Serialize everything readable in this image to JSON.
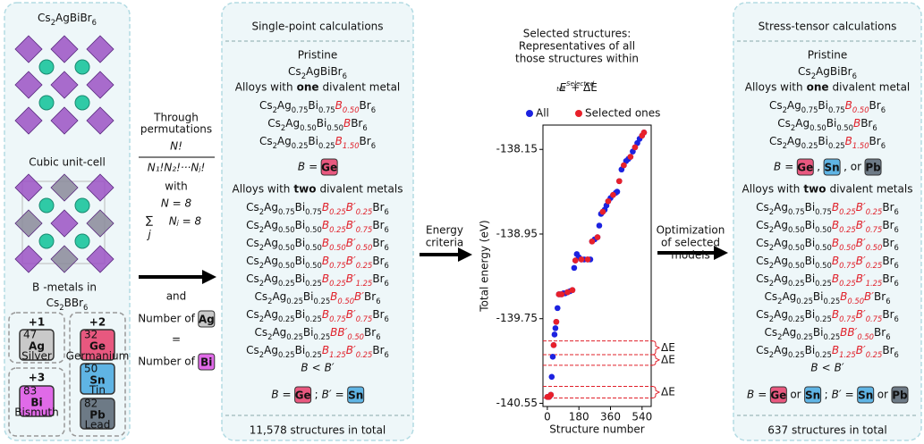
{
  "panel_left": {
    "title": "Cs2AgBiBr6",
    "caption": "Cubic unit-cell",
    "b_metals": {
      "b": "B",
      "rest": "-metals in",
      "formula": "Cs2BBr6"
    },
    "groups": [
      {
        "charge": "+1",
        "elements": [
          {
            "symbol": "Ag",
            "number": 47,
            "name": "Silver",
            "color": "#c9c9c9"
          }
        ]
      },
      {
        "charge": "+2",
        "elements": [
          {
            "symbol": "Ge",
            "number": 32,
            "name": "Germanium",
            "color": "#e8587f"
          },
          {
            "symbol": "Sn",
            "number": 50,
            "name": "Tin",
            "color": "#5fb4e4"
          },
          {
            "symbol": "Pb",
            "number": 82,
            "name": "Lead",
            "color": "#6d7a86"
          }
        ]
      },
      {
        "charge": "+3",
        "elements": [
          {
            "symbol": "Bi",
            "number": 83,
            "name": "Bismuth",
            "color": "#e06ae8"
          }
        ]
      }
    ]
  },
  "permutations": {
    "lines": [
      "Through",
      "permutations"
    ],
    "numerator": "N!",
    "denominator": "N₁!N₂!···Nⱼ!",
    "with": "with",
    "n_eq": "N = 8",
    "sum": "∑",
    "sum_index": "j",
    "sum_expr": "Nⱼ = 8",
    "and": "and",
    "count_a": [
      "Number of",
      {
        "tile": "Ag"
      }
    ],
    "equals": "=",
    "count_b": [
      "Number of",
      {
        "tile": "Bi"
      }
    ]
  },
  "energy_arrow": {
    "lines": [
      "Energy",
      "criteria"
    ]
  },
  "single_point": {
    "header": "Single-point calculations",
    "pristine": "Pristine",
    "pristine_formula": "Cs2AgBiBr6",
    "one_heading": {
      "pre": "Alloys with",
      "em": "one",
      "post": "divalent metal"
    },
    "one_formulas": [
      "Cs2Ag0.75Bi0.75B0.50Br6",
      "Cs2Ag0.50Bi0.50BBr6",
      "Cs2Ag0.25Bi0.25B1.50Br6"
    ],
    "one_rule": [
      "B",
      "=",
      {
        "tile": "Ge"
      }
    ],
    "two_heading": {
      "pre": "Alloys with",
      "em": "two",
      "post": "divalent metals"
    },
    "two_formulas": [
      "Cs2Ag0.75Bi0.75B0.25B′0.25Br6",
      "Cs2Ag0.50Bi0.50B0.25B′0.75Br6",
      "Cs2Ag0.50Bi0.50B0.50B′0.50Br6",
      "Cs2Ag0.50Bi0.50B0.75B′0.25Br6",
      "Cs2Ag0.25Bi0.25B0.25B′1.25Br6",
      "Cs2Ag0.25Bi0.25B0.50B′Br6",
      "Cs2Ag0.25Bi0.25B0.75B′0.75Br6",
      "Cs2Ag0.25Bi0.25BB′0.50Br6",
      "Cs2Ag0.25Bi0.25B1.25B′0.25Br6"
    ],
    "two_order": [
      "B",
      "<",
      "B′"
    ],
    "two_rule": [
      "B",
      "=",
      {
        "tile": "Ge"
      },
      ";",
      "B′",
      "=",
      {
        "tile": "Sn"
      }
    ],
    "footer": "11,578 structures in total"
  },
  "plot": {
    "type": "scatter",
    "title_lines": [
      "Selected structures:",
      "Representatives of all",
      "those structures within"
    ],
    "expression": {
      "base": "E",
      "sub": "tot",
      "sup": "Selected",
      "rest": "+ ΔE"
    },
    "x_label": "Structure number",
    "y_label": "Total energy (eV)",
    "xlim": [
      -25,
      592
    ],
    "ylim": [
      -140.58,
      -137.92
    ],
    "xticks": [
      0,
      180,
      360,
      540
    ],
    "yticks": [
      -138.15,
      -138.95,
      -139.75,
      -140.55
    ],
    "series": [
      {
        "name": "All",
        "color": "#1c22e0",
        "x": [
          0,
          5,
          10,
          15,
          20,
          25,
          31,
          36,
          41,
          46,
          51,
          58,
          66,
          74,
          82,
          92,
          102,
          115,
          130,
          143,
          153,
          160,
          168,
          180,
          194,
          210,
          230,
          245,
          255,
          270,
          286,
          296,
          306,
          316,
          327,
          337,
          347,
          360,
          375,
          390,
          398,
          410,
          423,
          436,
          449,
          462,
          474,
          487,
          500,
          513,
          526,
          540,
          551
        ],
        "values": [
          -140.49,
          -140.49,
          -140.49,
          -140.48,
          -140.47,
          -140.3,
          -140.11,
          -140.0,
          -139.9,
          -139.84,
          -139.78,
          -139.65,
          -139.52,
          -139.52,
          -139.52,
          -139.51,
          -139.51,
          -139.5,
          -139.49,
          -139.48,
          -139.27,
          -139.2,
          -139.14,
          -139.17,
          -139.19,
          -139.19,
          -139.19,
          -139.19,
          -139.02,
          -139.0,
          -138.98,
          -138.87,
          -138.76,
          -138.74,
          -138.72,
          -138.68,
          -138.64,
          -138.61,
          -138.58,
          -138.56,
          -138.55,
          -138.45,
          -138.34,
          -138.3,
          -138.26,
          -138.24,
          -138.22,
          -138.17,
          -138.13,
          -138.09,
          -138.05,
          -138.02,
          -137.99
        ]
      },
      {
        "name": "Selected ones",
        "color": "#e8202a",
        "x": [
          0,
          10,
          20,
          36,
          51,
          66,
          82,
          115,
          143,
          160,
          194,
          230,
          255,
          286,
          316,
          347,
          375,
          410,
          436,
          474,
          500,
          540,
          551
        ],
        "values": [
          -140.49,
          -140.49,
          -140.47,
          -140.0,
          -139.78,
          -139.52,
          -139.52,
          -139.5,
          -139.48,
          -139.2,
          -139.19,
          -139.19,
          -139.02,
          -138.98,
          -138.74,
          -138.64,
          -138.58,
          -138.45,
          -138.3,
          -138.22,
          -138.13,
          -138.02,
          -137.99
        ]
      }
    ],
    "delta_e": {
      "label": "ΔE",
      "ranges": [
        [
          -139.96,
          -140.09
        ],
        [
          -140.09,
          -140.19
        ],
        [
          -140.39,
          -140.5
        ]
      ]
    }
  },
  "optimization_arrow": {
    "lines": [
      "Optimization",
      "of selected",
      "models"
    ]
  },
  "stress_tensor": {
    "header": "Stress-tensor calculations",
    "pristine": "Pristine",
    "pristine_formula": "Cs2AgBiBr6",
    "one_heading": {
      "pre": "Alloys with",
      "em": "one",
      "post": "divalent metal"
    },
    "one_formulas": [
      "Cs2Ag0.75Bi0.75B0.50Br6",
      "Cs2Ag0.50Bi0.50BBr6",
      "Cs2Ag0.25Bi0.25B1.50Br6"
    ],
    "one_rule": [
      "B",
      "=",
      {
        "tile": "Ge"
      },
      ",",
      {
        "tile": "Sn"
      },
      ", or",
      {
        "tile": "Pb"
      }
    ],
    "two_heading": {
      "pre": "Alloys with",
      "em": "two",
      "post": "divalent metals"
    },
    "two_formulas": [
      "Cs2Ag0.75Bi0.75B0.25B′0.25Br6",
      "Cs2Ag0.50Bi0.50B0.25B′0.75Br6",
      "Cs2Ag0.50Bi0.50B0.50B′0.50Br6",
      "Cs2Ag0.50Bi0.50B0.75B′0.25Br6",
      "Cs2Ag0.25Bi0.25B0.25B′1.25Br6",
      "Cs2Ag0.25Bi0.25B0.50B′Br6",
      "Cs2Ag0.25Bi0.25B0.75B′0.75Br6",
      "Cs2Ag0.25Bi0.25BB′0.50Br6",
      "Cs2Ag0.25Bi0.25B1.25B′0.25Br6"
    ],
    "two_order": [
      "B",
      "<",
      "B′"
    ],
    "two_rule": [
      "B",
      "=",
      {
        "tile": "Ge"
      },
      "or",
      {
        "tile": "Sn"
      },
      ";",
      "B′",
      "=",
      {
        "tile": "Sn"
      },
      "or",
      {
        "tile": "Pb"
      }
    ],
    "footer": "637 structures in total"
  }
}
